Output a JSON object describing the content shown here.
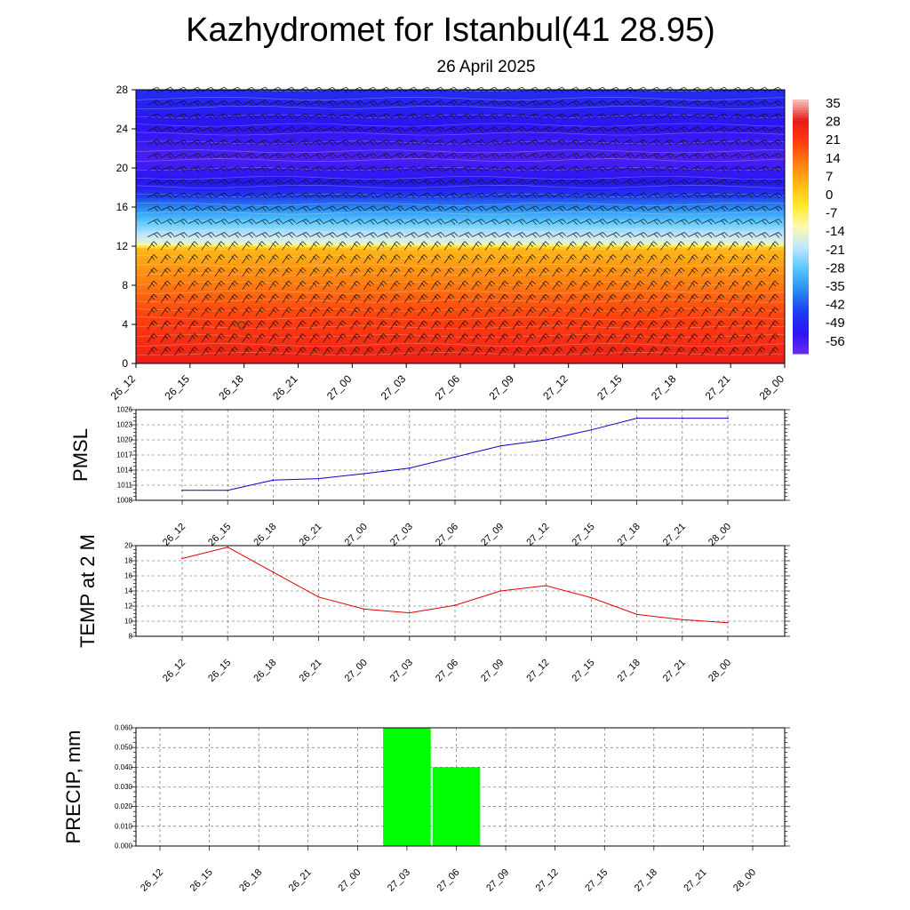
{
  "title": "Kazhydromet for Istanbul(41 28.95)",
  "subtitle": "26 April 2025",
  "time_labels": [
    "26_12",
    "26_15",
    "26_18",
    "26_21",
    "27_00",
    "27_03",
    "27_06",
    "27_09",
    "27_12",
    "27_15",
    "27_18",
    "27_21",
    "28_00"
  ],
  "chart_data": [
    {
      "type": "heatmap",
      "name": "temperature-cross-section",
      "x": [
        "26_12",
        "26_15",
        "26_18",
        "26_21",
        "27_00",
        "27_03",
        "27_06",
        "27_09",
        "27_12",
        "27_15",
        "27_18",
        "27_21",
        "28_00"
      ],
      "yticks": [
        0,
        4,
        8,
        12,
        16,
        20,
        24,
        28
      ],
      "ylim": [
        0,
        28
      ],
      "colorbar_ticks": [
        35,
        28,
        21,
        14,
        7,
        0,
        -7,
        -14,
        -21,
        -28,
        -35,
        -42,
        -49,
        -56
      ],
      "colorbar_colors": [
        "#f7c6c6",
        "#e81a1a",
        "#ff3d0f",
        "#ff7f10",
        "#ffb717",
        "#ffea2a",
        "#fff9b0",
        "#bfe6ff",
        "#56c6ff",
        "#2a8cf2",
        "#1e3ff0",
        "#2a15f2",
        "#6a2af0"
      ],
      "profile": [
        {
          "y": 0,
          "t": 29
        },
        {
          "y": 3,
          "t": 24
        },
        {
          "y": 6,
          "t": 19
        },
        {
          "y": 9,
          "t": 12
        },
        {
          "y": 11.8,
          "t": 5
        },
        {
          "y": 12.3,
          "t": -14
        },
        {
          "y": 14,
          "t": -24
        },
        {
          "y": 16,
          "t": -36
        },
        {
          "y": 18,
          "t": -50
        },
        {
          "y": 21,
          "t": -56
        },
        {
          "y": 26,
          "t": -50
        },
        {
          "y": 28,
          "t": -47
        }
      ],
      "wind_barbs": true
    },
    {
      "type": "line",
      "ylabel": "PMSL",
      "categories": [
        "26_12",
        "26_15",
        "26_18",
        "26_21",
        "27_00",
        "27_03",
        "27_06",
        "27_09",
        "27_12",
        "27_15",
        "27_18",
        "27_21",
        "28_00"
      ],
      "values": [
        1010,
        1010,
        1012,
        1012.3,
        1013.3,
        1014.4,
        1016.6,
        1018.8,
        1020,
        1022,
        1024.3,
        1024.3,
        1024.3
      ],
      "yticks": [
        1008,
        1011,
        1014,
        1017,
        1020,
        1023,
        1026
      ],
      "ylim": [
        1008,
        1026
      ],
      "color": "#0000cc",
      "grid": true
    },
    {
      "type": "line",
      "ylabel": "TEMP at 2 M",
      "categories": [
        "26_12",
        "26_15",
        "26_18",
        "26_21",
        "27_00",
        "27_03",
        "27_06",
        "27_09",
        "27_12",
        "27_15",
        "27_18",
        "27_21",
        "28_00"
      ],
      "values": [
        18.3,
        19.8,
        16.5,
        13.2,
        11.6,
        11.1,
        12.1,
        14,
        14.7,
        13.1,
        10.9,
        10.2,
        9.8
      ],
      "yticks": [
        8,
        10,
        12,
        14,
        16,
        18,
        20
      ],
      "ylim": [
        8,
        20
      ],
      "color": "#e00000",
      "grid": true
    },
    {
      "type": "bar",
      "ylabel": "PRECIP, mm",
      "categories": [
        "26_12",
        "26_15",
        "26_18",
        "26_21",
        "27_00",
        "27_03",
        "27_06",
        "27_09",
        "27_12",
        "27_15",
        "27_18",
        "27_21",
        "28_00"
      ],
      "values": [
        0,
        0,
        0,
        0,
        0,
        0.06,
        0.04,
        0,
        0,
        0,
        0,
        0,
        0
      ],
      "yticks": [
        "0.000",
        "0.010",
        "0.020",
        "0.030",
        "0.040",
        "0.050",
        "0.060"
      ],
      "ylim": [
        0,
        0.06
      ],
      "color": "#00ff00",
      "grid": true
    }
  ]
}
